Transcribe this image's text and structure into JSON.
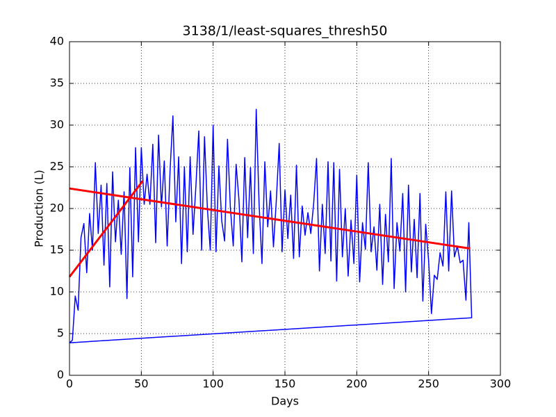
{
  "chart_data": {
    "type": "line",
    "title": "3138/1/least-squares_thresh50",
    "x_label": "Days",
    "y_label": "Production (L)",
    "xlim": [
      0,
      300
    ],
    "xticks": [
      0,
      50,
      100,
      150,
      200,
      250,
      300
    ],
    "ylim": [
      0,
      40
    ],
    "yticks": [
      0,
      5,
      10,
      15,
      20,
      25,
      30,
      35,
      40
    ],
    "grid": true,
    "series": [
      {
        "color": "#0000ff",
        "width": 1.5,
        "x": [
          0,
          2,
          4,
          6,
          8,
          10,
          12,
          14,
          16,
          18,
          20,
          22,
          24,
          26,
          28,
          30,
          32,
          34,
          36,
          38,
          40,
          42,
          44,
          46,
          48,
          50,
          52,
          54,
          56,
          58,
          60,
          62,
          64,
          66,
          68,
          70,
          72,
          74,
          76,
          78,
          80,
          82,
          84,
          86,
          88,
          90,
          92,
          94,
          96,
          98,
          100,
          102,
          104,
          106,
          108,
          110,
          112,
          114,
          116,
          118,
          120,
          122,
          124,
          126,
          128,
          130,
          132,
          134,
          136,
          138,
          140,
          142,
          144,
          146,
          148,
          150,
          152,
          154,
          156,
          158,
          160,
          162,
          164,
          166,
          168,
          170,
          172,
          174,
          176,
          178,
          180,
          182,
          184,
          186,
          188,
          190,
          192,
          194,
          196,
          198,
          200,
          202,
          204,
          206,
          208,
          210,
          212,
          214,
          216,
          218,
          220,
          222,
          224,
          226,
          228,
          230,
          232,
          234,
          236,
          238,
          240,
          242,
          244,
          246,
          248,
          250,
          252,
          254,
          256,
          258,
          260,
          262,
          264,
          266,
          268,
          270,
          272,
          274,
          276,
          278,
          280,
          0
        ],
        "values": [
          3.9,
          4.2,
          9.5,
          7.8,
          16.5,
          18.2,
          12.3,
          19.4,
          15,
          25.5,
          17,
          22.8,
          13.2,
          23,
          10.6,
          24.4,
          16,
          21,
          14.5,
          22,
          9.2,
          24.9,
          11.8,
          27.3,
          16,
          27.3,
          20.5,
          24.1,
          20.5,
          27.7,
          15.9,
          28.8,
          20.2,
          25.7,
          15.5,
          24.5,
          31.1,
          18.4,
          26.2,
          13.4,
          25,
          14.8,
          26.2,
          16.9,
          22.7,
          29.3,
          15,
          28.6,
          20,
          15,
          30,
          14.8,
          25.1,
          18.5,
          16.1,
          28.3,
          20.1,
          15.5,
          25.3,
          21,
          13.6,
          26.1,
          16.5,
          24.9,
          14.6,
          31.9,
          20.5,
          13.4,
          25.6,
          17.8,
          22.1,
          15.4,
          21,
          27.8,
          14.8,
          22.2,
          16.4,
          21.6,
          14,
          25.2,
          14.2,
          20.3,
          16.8,
          19.5,
          17,
          20.6,
          26,
          12.5,
          20.5,
          14.6,
          25.6,
          13.7,
          25.5,
          11.3,
          24.7,
          14.2,
          20,
          11.9,
          18.6,
          13.4,
          24,
          11.2,
          18.3,
          15.1,
          25.5,
          14.8,
          17.8,
          12.6,
          20.5,
          10.9,
          19.3,
          13.6,
          26,
          10.4,
          18.3,
          14.9,
          21.8,
          10,
          22.8,
          12.4,
          18.7,
          11.7,
          21.8,
          8.9,
          18.1,
          13.8,
          7.4,
          12,
          11.5,
          14.7,
          13.1,
          22,
          12.5,
          22.1,
          14.2,
          15.5,
          13.5,
          13.8,
          9.0,
          18.3,
          6.9,
          3.9
        ]
      },
      {
        "color": "#ff0000",
        "width": 3,
        "x": [
          0,
          51
        ],
        "values": [
          11.8,
          23.3
        ]
      },
      {
        "color": "#ff0000",
        "width": 3,
        "x": [
          0,
          279
        ],
        "values": [
          22.4,
          15.2
        ]
      }
    ]
  }
}
